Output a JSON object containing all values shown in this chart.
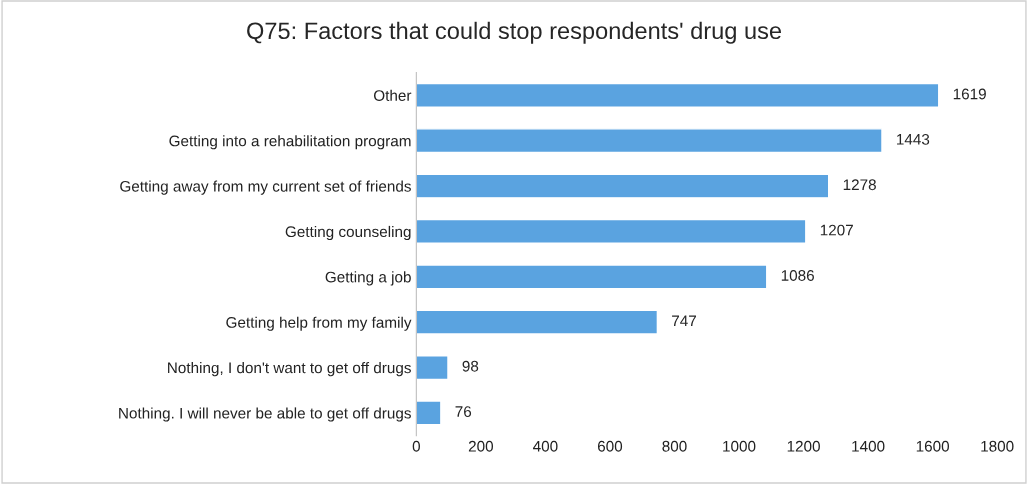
{
  "chart_data": {
    "type": "bar",
    "orientation": "horizontal",
    "title": "Q75: Factors that could stop respondents' drug use",
    "categories": [
      "Other",
      "Getting into a rehabilitation program",
      "Getting away from my current set of friends",
      "Getting counseling",
      "Getting a job",
      "Getting help from my family",
      "Nothing, I don't want to get off drugs",
      "Nothing. I will never be able to get off drugs"
    ],
    "series": [
      {
        "color": "#5aa3e0",
        "values": [
          1619,
          1443,
          1278,
          1207,
          1086,
          747,
          98,
          76
        ]
      }
    ],
    "data_labels": true,
    "xlim": [
      0,
      1800
    ],
    "xticks": [
      0,
      200,
      400,
      600,
      800,
      1000,
      1200,
      1400,
      1600,
      1800
    ],
    "grid": false,
    "legend": false
  }
}
